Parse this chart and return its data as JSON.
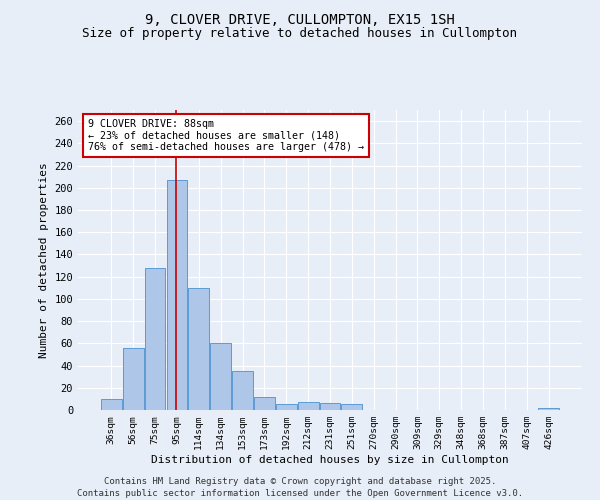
{
  "title_line1": "9, CLOVER DRIVE, CULLOMPTON, EX15 1SH",
  "title_line2": "Size of property relative to detached houses in Cullompton",
  "xlabel": "Distribution of detached houses by size in Cullompton",
  "ylabel": "Number of detached properties",
  "bar_labels": [
    "36sqm",
    "56sqm",
    "75sqm",
    "95sqm",
    "114sqm",
    "134sqm",
    "153sqm",
    "173sqm",
    "192sqm",
    "212sqm",
    "231sqm",
    "251sqm",
    "270sqm",
    "290sqm",
    "309sqm",
    "329sqm",
    "348sqm",
    "368sqm",
    "387sqm",
    "407sqm",
    "426sqm"
  ],
  "bar_values": [
    10,
    56,
    128,
    207,
    110,
    60,
    35,
    12,
    5,
    7,
    6,
    5,
    0,
    0,
    0,
    0,
    0,
    0,
    0,
    0,
    2
  ],
  "bar_color": "#aec6e8",
  "bar_edge_color": "#5b9bd5",
  "vline_color": "#cc0000",
  "annotation_text": "9 CLOVER DRIVE: 88sqm\n← 23% of detached houses are smaller (148)\n76% of semi-detached houses are larger (478) →",
  "annotation_box_color": "#ffffff",
  "annotation_box_edge": "#cc0000",
  "ylim": [
    0,
    270
  ],
  "yticks": [
    0,
    20,
    40,
    60,
    80,
    100,
    120,
    140,
    160,
    180,
    200,
    220,
    240,
    260
  ],
  "bg_color": "#e8eef7",
  "grid_color": "#ffffff",
  "footer_line1": "Contains HM Land Registry data © Crown copyright and database right 2025.",
  "footer_line2": "Contains public sector information licensed under the Open Government Licence v3.0.",
  "title_fontsize": 10,
  "subtitle_fontsize": 9,
  "footer_fontsize": 6.5
}
